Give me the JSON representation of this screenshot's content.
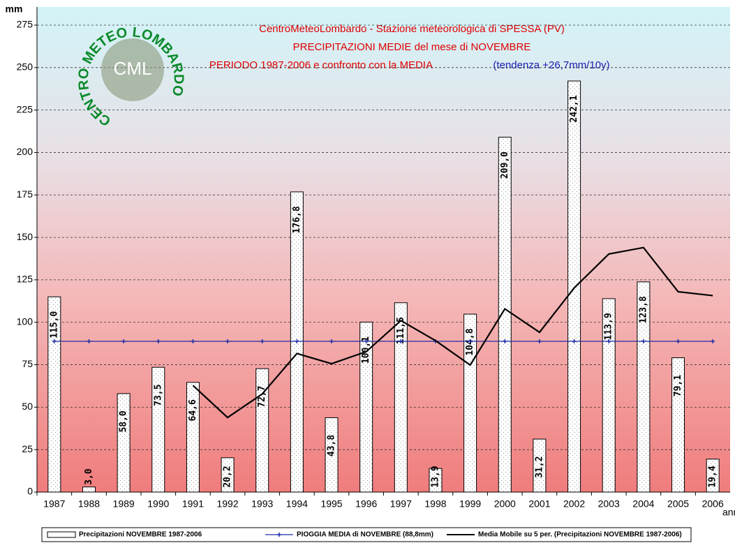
{
  "chart_data": {
    "type": "bar",
    "title": [
      "CentroMeteoLombardo - Stazione meteorologica di SPESSA (PV)",
      "PRECIPITAZIONI MEDIE del mese di NOVEMBRE",
      "PERIODO 1987-2006 e confronto con la MEDIA"
    ],
    "subtitle": "(tendenza +26,7mm/10y)",
    "y_label": "mm",
    "x_label": "anni",
    "logo": {
      "ring": "CENTRO METEO LOMBARDO",
      "abbr": "CML"
    },
    "categories": [
      "1987",
      "1988",
      "1989",
      "1990",
      "1991",
      "1992",
      "1993",
      "1994",
      "1995",
      "1996",
      "1997",
      "1998",
      "1999",
      "2000",
      "2001",
      "2002",
      "2003",
      "2004",
      "2005",
      "2006"
    ],
    "series": [
      {
        "name": "Precipitazioni NOVEMBRE 1987-2006",
        "type": "bar",
        "color": "#ffffff",
        "values": [
          115.0,
          3.0,
          58.0,
          73.5,
          64.6,
          20.2,
          72.7,
          176.8,
          43.8,
          100.1,
          111.5,
          13.9,
          104.8,
          209.0,
          31.2,
          242.1,
          113.9,
          123.8,
          79.1,
          19.4
        ],
        "value_labels": [
          "115,0",
          "3,0",
          "58,0",
          "73,5",
          "64,6",
          "20,2",
          "72,7",
          "176,8",
          "43,8",
          "100,1",
          "111,5",
          "13,9",
          "104,8",
          "209,0",
          "31,2",
          "242,1",
          "113,9",
          "123,8",
          "79,1",
          "19,4"
        ]
      },
      {
        "name": "PIOGGIA MEDIA di NOVEMBRE (88,8mm)",
        "type": "line",
        "color": "#1f2ea8",
        "values": [
          88.8,
          88.8,
          88.8,
          88.8,
          88.8,
          88.8,
          88.8,
          88.8,
          88.8,
          88.8,
          88.8,
          88.8,
          88.8,
          88.8,
          88.8,
          88.8,
          88.8,
          88.8,
          88.8,
          88.8
        ]
      },
      {
        "name": "Media Mobile su 5 per. (Precipitazioni NOVEMBRE 1987-2006)",
        "type": "line",
        "color": "#000000",
        "values": [
          null,
          null,
          null,
          null,
          62.8,
          43.9,
          57.8,
          81.6,
          75.6,
          82.7,
          101.0,
          89.2,
          74.8,
          107.9,
          94.1,
          120.2,
          140.2,
          144.0,
          118.0,
          115.7
        ]
      }
    ],
    "ylim": [
      0,
      275
    ],
    "yticks": [
      0,
      25,
      50,
      75,
      100,
      125,
      150,
      175,
      200,
      225,
      250,
      275
    ],
    "grid": true
  }
}
